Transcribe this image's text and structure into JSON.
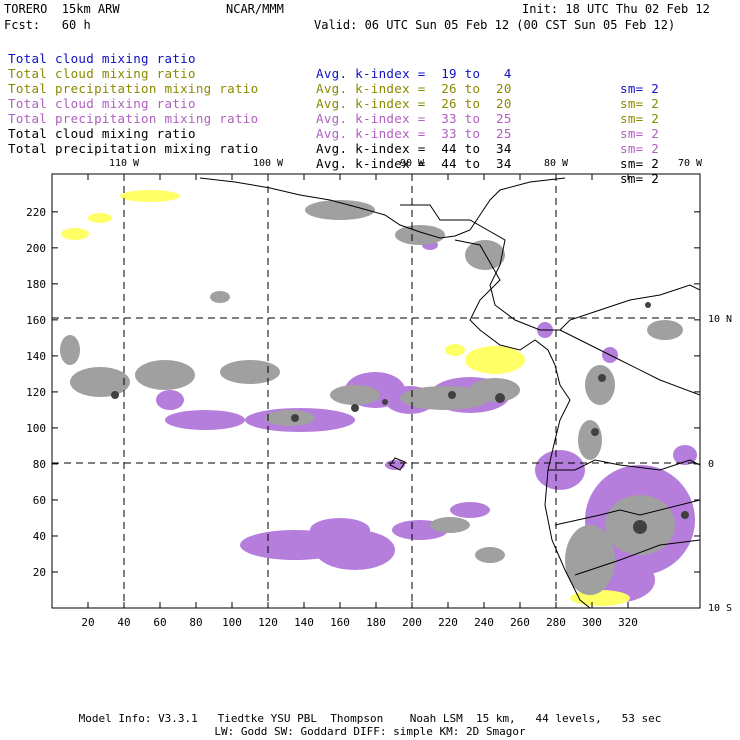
{
  "header": {
    "model": "TORERO  15km ARW",
    "center": "NCAR/MMM",
    "init": "Init: 18 UTC Thu 02 Feb 12",
    "fcst": "Fcst:   60 h",
    "valid": "Valid: 06 UTC Sun 05 Feb 12 (00 CST Sun 05 Feb 12)"
  },
  "legend": [
    {
      "label": "Total cloud mixing ratio",
      "kidx": "Avg. k-index =  19 to   4",
      "sm": "sm= 2",
      "color": "#1010c0"
    },
    {
      "label": "Total cloud mixing ratio",
      "kidx": "Avg. k-index =  26 to  20",
      "sm": "sm= 2",
      "color": "#8a8a00"
    },
    {
      "label": "Total precipitation mixing ratio",
      "kidx": "Avg. k-index =  26 to  20",
      "sm": "sm= 2",
      "color": "#8a8a00"
    },
    {
      "label": "Total cloud mixing ratio",
      "kidx": "Avg. k-index =  33 to  25",
      "sm": "sm= 2",
      "color": "#b060c0"
    },
    {
      "label": "Total precipitation mixing ratio",
      "kidx": "Avg. k-index =  33 to  25",
      "sm": "sm= 2",
      "color": "#b060c0"
    },
    {
      "label": "Total cloud mixing ratio",
      "kidx": "Avg. k-index =  44 to  34",
      "sm": "sm= 2",
      "color": "#000000"
    },
    {
      "label": "Total precipitation mixing ratio",
      "kidx": "Avg. k-index =  44 to  34",
      "sm": "sm= 2",
      "color": "#000000"
    }
  ],
  "map": {
    "x_ticks": [
      "20",
      "40",
      "60",
      "80",
      "100",
      "120",
      "140",
      "160",
      "180",
      "200",
      "220",
      "240",
      "260",
      "280",
      "300",
      "320"
    ],
    "y_ticks": [
      "20",
      "40",
      "60",
      "80",
      "100",
      "120",
      "140",
      "160",
      "180",
      "200",
      "220"
    ],
    "lon_labels": [
      "110 W",
      "100 W",
      "90 W",
      "80 W",
      "70 W"
    ],
    "lat_labels": [
      "10 N",
      "0",
      "10 S"
    ],
    "colors": {
      "purple": "#b57edc",
      "yellow": "#ffff66",
      "gray": "#a0a0a0",
      "dark": "#404040"
    }
  },
  "footer": {
    "line1": "Model Info: V3.3.1   Tiedtke YSU PBL  Thompson    Noah LSM  15 km,   44 levels,   53 sec",
    "line2": "LW: Godd SW: Goddard DIFF: simple KM: 2D Smagor"
  }
}
